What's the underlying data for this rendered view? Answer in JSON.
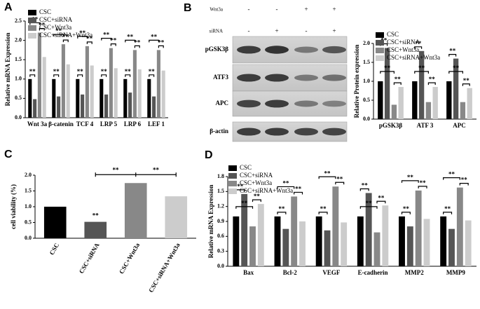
{
  "chart_data": [
    {
      "type": "bar",
      "panel": "A",
      "y_label": "Relative mRNA Expression",
      "significance": "**",
      "categories": [
        "Wnt 3a",
        "β-catenin",
        "TCF 4",
        "LRP 5",
        "LRP 6",
        "LEF 1"
      ],
      "series": [
        {
          "name": "CSC",
          "color": "#000000",
          "values": [
            1.0,
            1.0,
            1.0,
            1.0,
            1.0,
            1.0
          ]
        },
        {
          "name": "CSC+siRNA",
          "color": "#555555",
          "values": [
            0.48,
            0.55,
            0.6,
            0.6,
            0.65,
            0.55
          ]
        },
        {
          "name": "CSC+Wnt3a",
          "color": "#888888",
          "values": [
            2.2,
            1.9,
            1.85,
            1.8,
            1.75,
            1.75
          ]
        },
        {
          "name": "CSC+siRNA+Wnt3a",
          "color": "#cccccc",
          "values": [
            1.57,
            1.38,
            1.35,
            1.28,
            1.25,
            1.22
          ]
        }
      ],
      "ylim": [
        0,
        2.5
      ],
      "yticks": [
        {
          "value": 0,
          "label": "0.0"
        },
        {
          "value": 0.5,
          "label": "0.5"
        },
        {
          "value": 1,
          "label": "1.0"
        },
        {
          "value": 1.5,
          "label": "1.5"
        },
        {
          "value": 2,
          "label": "2.0"
        },
        {
          "value": 2.5,
          "label": "2.5"
        }
      ]
    },
    {
      "type": "bar",
      "y_label": "Relative Protein expression",
      "significance": "**",
      "categories": [
        "pGSK3β",
        "ATF 3",
        "APC"
      ],
      "series": [
        {
          "name": "CSC",
          "color": "#000000",
          "values": [
            1.0,
            1.0,
            1.0
          ]
        },
        {
          "name": "CSC+siRNA",
          "color": "#555555",
          "values": [
            1.88,
            1.8,
            1.6
          ]
        },
        {
          "name": "CSC+Wnt3a",
          "color": "#888888",
          "values": [
            0.38,
            0.45,
            0.45
          ]
        },
        {
          "name": "CSC+siRNA+Wnt3a",
          "color": "#cccccc",
          "values": [
            0.85,
            0.85,
            0.82
          ]
        }
      ],
      "ylim": [
        0,
        2
      ],
      "yticks": [
        {
          "value": 0,
          "label": "0.0"
        },
        {
          "value": 0.5,
          "label": "0.5"
        },
        {
          "value": 1,
          "label": "1.0"
        },
        {
          "value": 1.5,
          "label": "1.5"
        },
        {
          "value": 2,
          "label": "2.0"
        }
      ]
    },
    {
      "type": "bar",
      "panel": "C",
      "y_label": "cell viability (%)",
      "significance": "**",
      "categories": [
        "CSC",
        "CSC+siRNA",
        "CSC+Wnt3a",
        "CSC+siRNA+Wnt3a"
      ],
      "values": [
        1.0,
        0.52,
        1.75,
        1.33
      ],
      "colors": [
        "#000000",
        "#555555",
        "#888888",
        "#cccccc"
      ],
      "ylim": [
        0,
        2
      ],
      "yticks": [
        {
          "value": 0,
          "label": "0.0"
        },
        {
          "value": 0.5,
          "label": "0.5"
        },
        {
          "value": 1,
          "label": "1.0"
        },
        {
          "value": 1.5,
          "label": "1.5"
        },
        {
          "value": 2,
          "label": "2.0"
        }
      ]
    },
    {
      "type": "bar",
      "panel": "D",
      "y_label": "Relative mRNA Expression",
      "significance": "**",
      "categories": [
        "Bax",
        "Bcl-2",
        "VEGF",
        "E-cadherin",
        "MMP2",
        "MMP9"
      ],
      "series": [
        {
          "name": "CSC",
          "color": "#000000",
          "values": [
            1.0,
            1.0,
            1.0,
            1.0,
            1.0,
            1.0
          ]
        },
        {
          "name": "CSC+siRNA",
          "color": "#555555",
          "values": [
            1.45,
            0.75,
            0.72,
            1.47,
            0.8,
            0.75
          ]
        },
        {
          "name": "CSC+Wnt3a",
          "color": "#888888",
          "values": [
            0.8,
            1.4,
            1.6,
            0.68,
            1.52,
            1.58
          ]
        },
        {
          "name": "CSC+siRNA+Wnt3a",
          "color": "#cccccc",
          "values": [
            1.25,
            0.9,
            0.88,
            1.22,
            0.95,
            0.92
          ]
        }
      ],
      "ylim": [
        0,
        1.8
      ],
      "yticks": [
        {
          "value": 0,
          "label": "0.0"
        },
        {
          "value": 0.3,
          "label": "0.3"
        },
        {
          "value": 0.6,
          "label": "0.6"
        },
        {
          "value": 0.9,
          "label": "0.9"
        },
        {
          "value": 1.2,
          "label": "1.2"
        },
        {
          "value": 1.5,
          "label": "1.5"
        },
        {
          "value": 1.8,
          "label": "1.8"
        }
      ]
    }
  ],
  "blot": {
    "panel": "B",
    "conditions": [
      {
        "name": "Wnt3a",
        "signs": [
          "-",
          "-",
          "+",
          "+"
        ]
      },
      {
        "name": "siRNA",
        "signs": [
          "-",
          "+",
          "-",
          "+"
        ]
      }
    ],
    "rows": [
      "pGSK3β",
      "ATF3",
      "APC",
      "β-actin"
    ]
  }
}
